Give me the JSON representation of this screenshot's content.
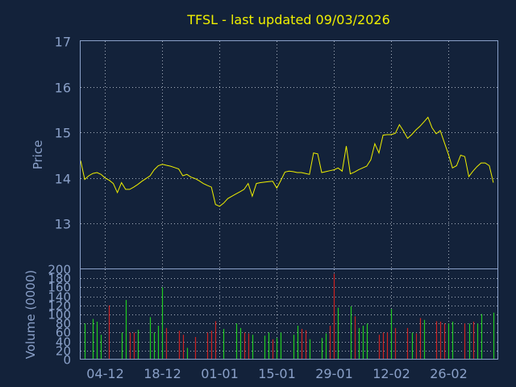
{
  "colors": {
    "background": "#13223a",
    "axis": "#8aa0c8",
    "price_line": "#f0f000",
    "volume_up": "#22cc22",
    "volume_down": "#cc2222"
  },
  "chart_data": [
    {
      "type": "line",
      "title": "TFSL - last updated 09/03/2026",
      "ylabel": "Price",
      "xlabel": "",
      "ylim": [
        12,
        17
      ],
      "yticks": [
        13,
        14,
        15,
        16,
        17
      ],
      "grid": true,
      "x_tick_labels": [
        "04-12",
        "18-12",
        "01-01",
        "15-01",
        "29-01",
        "12-02",
        "26-02"
      ],
      "x_tick_dates": [
        "2025-12-04",
        "2025-12-18",
        "2026-01-01",
        "2026-01-15",
        "2026-01-29",
        "2026-02-12",
        "2026-02-26"
      ],
      "series": [
        {
          "x": [
            "2025-11-28",
            "2025-11-29",
            "2025-11-30",
            "2025-12-01",
            "2025-12-02",
            "2025-12-03",
            "2025-12-04",
            "2025-12-05",
            "2025-12-06",
            "2025-12-07",
            "2025-12-08",
            "2025-12-09",
            "2025-12-10",
            "2025-12-11",
            "2025-12-12",
            "2025-12-13",
            "2025-12-14",
            "2025-12-15",
            "2025-12-16",
            "2025-12-17",
            "2025-12-18",
            "2025-12-19",
            "2025-12-20",
            "2025-12-21",
            "2025-12-22",
            "2025-12-23",
            "2025-12-24",
            "2025-12-25",
            "2025-12-26",
            "2025-12-27",
            "2025-12-28",
            "2025-12-29",
            "2025-12-30",
            "2025-12-31",
            "2026-01-01",
            "2026-01-02",
            "2026-01-03",
            "2026-01-04",
            "2026-01-05",
            "2026-01-06",
            "2026-01-07",
            "2026-01-08",
            "2026-01-09",
            "2026-01-10",
            "2026-01-11",
            "2026-01-12",
            "2026-01-13",
            "2026-01-14",
            "2026-01-15",
            "2026-01-16",
            "2026-01-17",
            "2026-01-18",
            "2026-01-19",
            "2026-01-20",
            "2026-01-21",
            "2026-01-22",
            "2026-01-23",
            "2026-01-24",
            "2026-01-25",
            "2026-01-26",
            "2026-01-27",
            "2026-01-28",
            "2026-01-29",
            "2026-01-30",
            "2026-01-31",
            "2026-02-01",
            "2026-02-02",
            "2026-02-03",
            "2026-02-04",
            "2026-02-05",
            "2026-02-06",
            "2026-02-07",
            "2026-02-08",
            "2026-02-09",
            "2026-02-10",
            "2026-02-11",
            "2026-02-12",
            "2026-02-13",
            "2026-02-14",
            "2026-02-15",
            "2026-02-16",
            "2026-02-17",
            "2026-02-18",
            "2026-02-19",
            "2026-02-20",
            "2026-02-21",
            "2026-02-22",
            "2026-02-23",
            "2026-02-24",
            "2026-02-25",
            "2026-02-26",
            "2026-02-27",
            "2026-02-28",
            "2026-03-01",
            "2026-03-02",
            "2026-03-03",
            "2026-03-04",
            "2026-03-05",
            "2026-03-06",
            "2026-03-07",
            "2026-03-08",
            "2026-03-09"
          ],
          "values": [
            14.38,
            13.97,
            14.05,
            14.1,
            14.12,
            14.08,
            14.0,
            13.95,
            13.88,
            13.68,
            13.9,
            13.75,
            13.75,
            13.8,
            13.86,
            13.93,
            13.99,
            14.05,
            14.18,
            14.27,
            14.3,
            14.28,
            14.26,
            14.23,
            14.2,
            14.05,
            14.08,
            14.02,
            13.99,
            13.94,
            13.88,
            13.84,
            13.8,
            13.42,
            13.38,
            13.45,
            13.55,
            13.6,
            13.65,
            13.7,
            13.75,
            13.88,
            13.6,
            13.88,
            13.9,
            13.91,
            13.92,
            13.93,
            13.78,
            13.95,
            14.13,
            14.15,
            14.14,
            14.12,
            14.12,
            14.1,
            14.08,
            14.55,
            14.53,
            14.12,
            14.14,
            14.16,
            14.18,
            14.22,
            14.15,
            14.7,
            14.09,
            14.13,
            14.18,
            14.22,
            14.26,
            14.4,
            14.75,
            14.55,
            14.94,
            14.95,
            14.95,
            14.98,
            15.17,
            15.03,
            14.87,
            14.95,
            15.05,
            15.13,
            15.23,
            15.33,
            15.1,
            14.97,
            15.04,
            14.78,
            14.52,
            14.22,
            14.27,
            14.5,
            14.47,
            14.03,
            14.15,
            14.25,
            14.33,
            14.33,
            14.27,
            13.9
          ]
        }
      ]
    },
    {
      "type": "bar",
      "title": "",
      "ylabel": "Volume (0000)",
      "xlabel": "",
      "ylim": [
        0,
        200
      ],
      "yticks": [
        0,
        20,
        40,
        60,
        80,
        100,
        120,
        140,
        160,
        180,
        200
      ],
      "grid": true,
      "x_tick_labels": [
        "04-12",
        "18-12",
        "01-01",
        "15-01",
        "29-01",
        "12-02",
        "26-02"
      ],
      "x_tick_dates": [
        "2025-12-04",
        "2025-12-18",
        "2026-01-01",
        "2026-01-15",
        "2026-01-29",
        "2026-02-12",
        "2026-02-26"
      ],
      "series": [
        {
          "x": [
            "2025-11-29",
            "2025-12-01",
            "2025-12-02",
            "2025-12-03",
            "2025-12-05",
            "2025-12-08",
            "2025-12-09",
            "2025-12-10",
            "2025-12-11",
            "2025-12-12",
            "2025-12-15",
            "2025-12-16",
            "2025-12-17",
            "2025-12-18",
            "2025-12-19",
            "2025-12-22",
            "2025-12-23",
            "2025-12-24",
            "2025-12-26",
            "2025-12-29",
            "2025-12-30",
            "2025-12-31",
            "2026-01-02",
            "2026-01-05",
            "2026-01-06",
            "2026-01-07",
            "2026-01-08",
            "2026-01-09",
            "2026-01-12",
            "2026-01-13",
            "2026-01-14",
            "2026-01-15",
            "2026-01-16",
            "2026-01-19",
            "2026-01-20",
            "2026-01-21",
            "2026-01-22",
            "2026-01-23",
            "2026-01-26",
            "2026-01-27",
            "2026-01-28",
            "2026-01-29",
            "2026-01-30",
            "2026-02-02",
            "2026-02-03",
            "2026-02-04",
            "2026-02-05",
            "2026-02-06",
            "2026-02-09",
            "2026-02-10",
            "2026-02-11",
            "2026-02-12",
            "2026-02-13",
            "2026-02-16",
            "2026-02-17",
            "2026-02-18",
            "2026-02-19",
            "2026-02-20",
            "2026-02-23",
            "2026-02-24",
            "2026-02-25",
            "2026-02-26",
            "2026-02-27",
            "2026-03-02",
            "2026-03-03",
            "2026-03-04",
            "2026-03-05",
            "2026-03-06",
            "2026-03-09"
          ],
          "values": [
            80,
            90,
            84,
            55,
            120,
            60,
            132,
            60,
            60,
            66,
            94,
            60,
            75,
            160,
            70,
            64,
            55,
            26,
            50,
            60,
            64,
            85,
            68,
            80,
            70,
            60,
            58,
            55,
            53,
            60,
            45,
            48,
            60,
            55,
            75,
            68,
            65,
            45,
            48,
            58,
            75,
            190,
            115,
            118,
            96,
            70,
            75,
            80,
            55,
            60,
            60,
            112,
            70,
            70,
            60,
            58,
            92,
            88,
            85,
            84,
            80,
            80,
            84,
            80,
            80,
            84,
            80,
            101,
            104
          ],
          "colors": [
            "up",
            "up",
            "up",
            "up",
            "down",
            "up",
            "up",
            "down",
            "down",
            "up",
            "up",
            "up",
            "up",
            "up",
            "down",
            "down",
            "down",
            "up",
            "down",
            "down",
            "down",
            "down",
            "up",
            "up",
            "up",
            "down",
            "down",
            "up",
            "up",
            "up",
            "down",
            "up",
            "up",
            "up",
            "up",
            "down",
            "down",
            "up",
            "up",
            "up",
            "down",
            "down",
            "up",
            "up",
            "down",
            "up",
            "up",
            "up",
            "down",
            "down",
            "down",
            "up",
            "down",
            "down",
            "up",
            "down",
            "down",
            "up",
            "down",
            "down",
            "down",
            "up",
            "up",
            "down",
            "up",
            "down",
            "up",
            "up",
            "up"
          ]
        }
      ]
    }
  ]
}
